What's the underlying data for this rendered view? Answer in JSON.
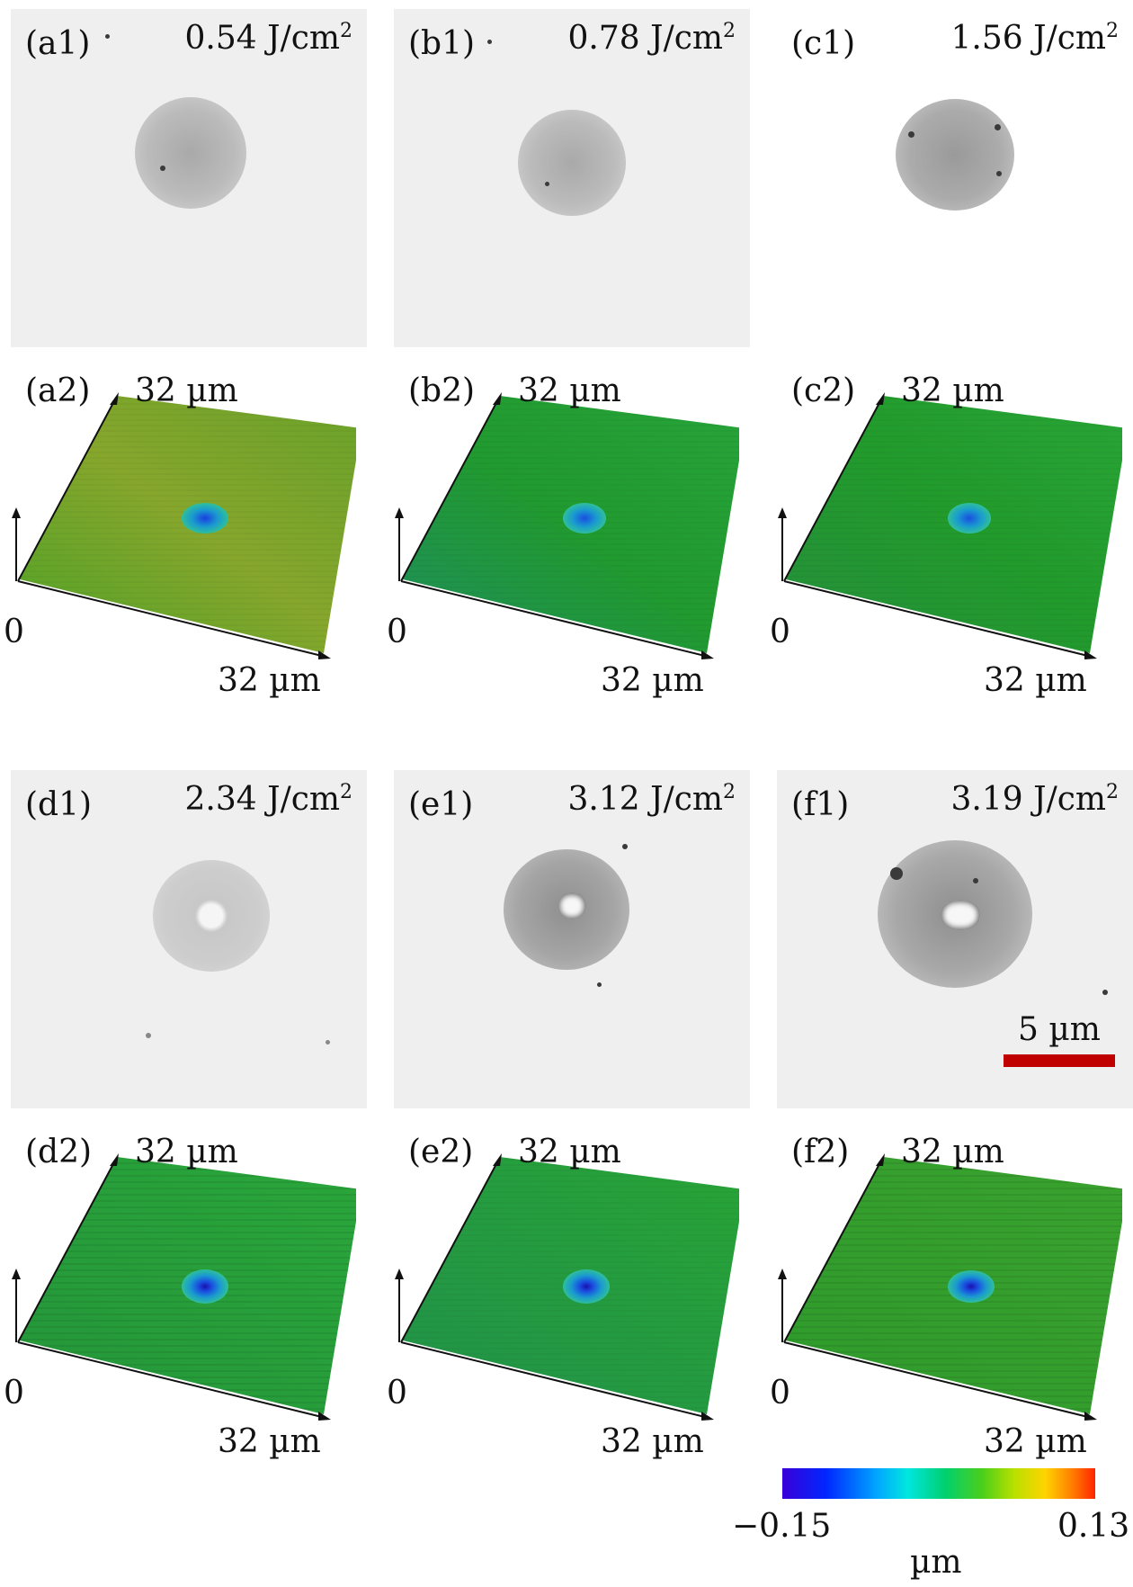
{
  "micro_panels": [
    {
      "label": "(a1)",
      "fluence": "0.54 J/cm",
      "exp": "2"
    },
    {
      "label": "(b1)",
      "fluence": "0.78 J/cm",
      "exp": "2"
    },
    {
      "label": "(c1)",
      "fluence": "1.56 J/cm",
      "exp": "2"
    },
    {
      "label": "(d1)",
      "fluence": "2.34 J/cm",
      "exp": "2"
    },
    {
      "label": "(e1)",
      "fluence": "3.12 J/cm",
      "exp": "2"
    },
    {
      "label": "(f1)",
      "fluence": "3.19 J/cm",
      "exp": "2"
    }
  ],
  "topo_panels": [
    {
      "label": "(a2)",
      "y_axis": "32 µm",
      "x_axis": "32 µm",
      "origin": "0"
    },
    {
      "label": "(b2)",
      "y_axis": "32 µm",
      "x_axis": "32 µm",
      "origin": "0"
    },
    {
      "label": "(c2)",
      "y_axis": "32 µm",
      "x_axis": "32 µm",
      "origin": "0"
    },
    {
      "label": "(d2)",
      "y_axis": "32 µm",
      "x_axis": "32 µm",
      "origin": "0"
    },
    {
      "label": "(e2)",
      "y_axis": "32 µm",
      "x_axis": "32 µm",
      "origin": "0"
    },
    {
      "label": "(f2)",
      "y_axis": "32 µm",
      "x_axis": "32 µm",
      "origin": "0"
    }
  ],
  "scale_bar": {
    "label": "5 µm",
    "color": "#c00000"
  },
  "colorbar": {
    "min": "−0.15",
    "max": "0.13",
    "unit": "µm"
  },
  "colors": {
    "surface_yellowish": "#7ea52a",
    "surface_green": "#1e9a2e",
    "crater_blue": "#1a5cd0"
  }
}
